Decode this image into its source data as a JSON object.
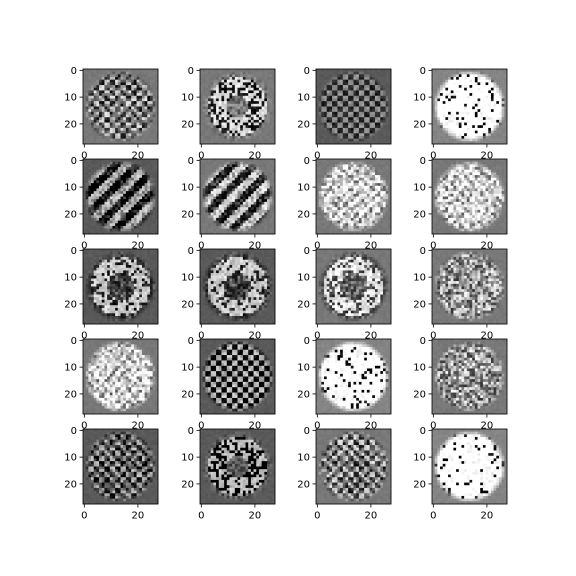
{
  "figure": {
    "type": "image-grid",
    "rows": 5,
    "cols": 4,
    "colormap": "gray",
    "image_size": [
      28,
      28
    ],
    "background": "#ffffff",
    "y_ticks": [
      "0",
      "10",
      "20"
    ],
    "x_ticks": [
      "0",
      "20"
    ],
    "panels": [
      {
        "row": 0,
        "col": 0,
        "brightness": "mid",
        "pattern": "sparse-checker"
      },
      {
        "row": 0,
        "col": 1,
        "brightness": "mid",
        "pattern": "ring-blobs"
      },
      {
        "row": 0,
        "col": 2,
        "brightness": "dark",
        "pattern": "faint-checker"
      },
      {
        "row": 0,
        "col": 3,
        "brightness": "bright",
        "pattern": "saturated-blob"
      },
      {
        "row": 1,
        "col": 0,
        "brightness": "dark",
        "pattern": "diagonal-checker"
      },
      {
        "row": 1,
        "col": 1,
        "brightness": "mid",
        "pattern": "diagonal-checker"
      },
      {
        "row": 1,
        "col": 2,
        "brightness": "mid",
        "pattern": "dense-blob"
      },
      {
        "row": 1,
        "col": 3,
        "brightness": "mid",
        "pattern": "dense-blob"
      },
      {
        "row": 2,
        "col": 0,
        "brightness": "dark",
        "pattern": "ring"
      },
      {
        "row": 2,
        "col": 1,
        "brightness": "dark",
        "pattern": "ring"
      },
      {
        "row": 2,
        "col": 2,
        "brightness": "mid",
        "pattern": "ring"
      },
      {
        "row": 2,
        "col": 3,
        "brightness": "mid",
        "pattern": "sparse-blob"
      },
      {
        "row": 3,
        "col": 0,
        "brightness": "mid",
        "pattern": "dense-blob"
      },
      {
        "row": 3,
        "col": 1,
        "brightness": "dark",
        "pattern": "checker"
      },
      {
        "row": 3,
        "col": 2,
        "brightness": "bright",
        "pattern": "saturated-blob"
      },
      {
        "row": 3,
        "col": 3,
        "brightness": "mid",
        "pattern": "sparse-blob"
      },
      {
        "row": 4,
        "col": 0,
        "brightness": "dark",
        "pattern": "sparse-checker"
      },
      {
        "row": 4,
        "col": 1,
        "brightness": "dark",
        "pattern": "ring-blobs"
      },
      {
        "row": 4,
        "col": 2,
        "brightness": "mid",
        "pattern": "sparse-checker"
      },
      {
        "row": 4,
        "col": 3,
        "brightness": "bright",
        "pattern": "saturated-blob"
      }
    ]
  }
}
